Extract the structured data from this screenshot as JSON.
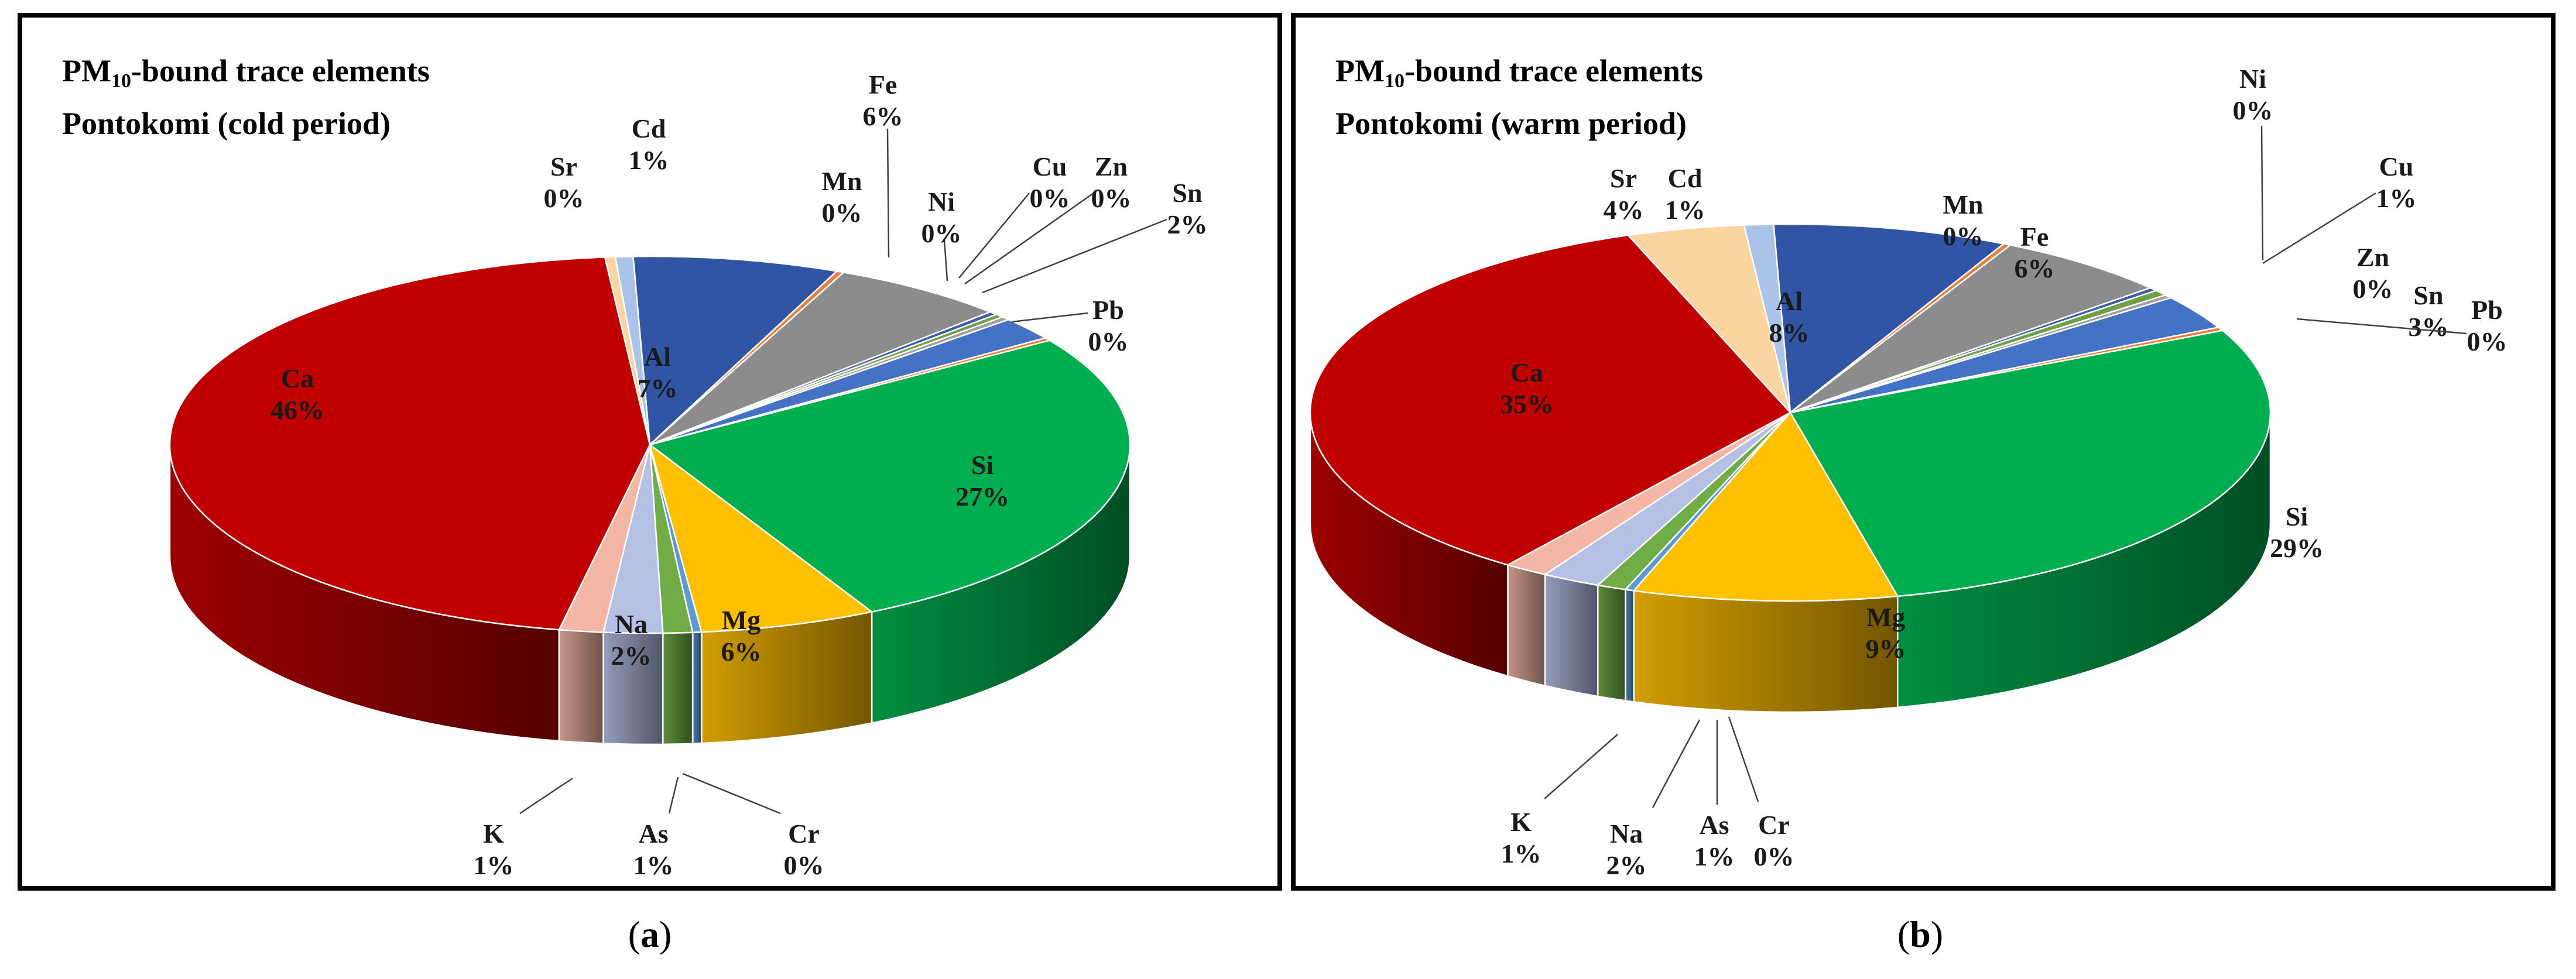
{
  "figure": {
    "panels": [
      {
        "id": "a",
        "caption_open": "(",
        "caption_letter": "a",
        "caption_close": ")",
        "title_prefix": "PM",
        "title_sub": "10",
        "title_suffix": "-bound trace elements",
        "title_line2": "Pontokomi (cold period)"
      },
      {
        "id": "b",
        "caption_open": "(",
        "caption_letter": "b",
        "caption_close": ")",
        "title_prefix": "PM",
        "title_sub": "10",
        "title_suffix": "-bound trace elements",
        "title_line2": "Pontokomi (warm period)"
      }
    ]
  },
  "chart_data": [
    {
      "type": "pie",
      "title": "PM10-bound trace elements Pontokomi (cold period)",
      "slices": [
        {
          "name": "Al",
          "label": "7%",
          "value": 7,
          "color": "#2f55a4"
        },
        {
          "name": "Pb",
          "label": "0%",
          "value": 0.25,
          "color": "#e87f3c"
        },
        {
          "name": "Fe",
          "label": "6%",
          "value": 6,
          "color": "#8c8c8c"
        },
        {
          "name": "Ni",
          "label": "0%",
          "value": 0.3,
          "color": "#3d5ea8"
        },
        {
          "name": "Cu",
          "label": "0%",
          "value": 0.3,
          "color": "#6fa043"
        },
        {
          "name": "Zn",
          "label": "0%",
          "value": 0.3,
          "color": "#a0a0a0"
        },
        {
          "name": "Sn",
          "label": "2%",
          "value": 2,
          "color": "#4472c4"
        },
        {
          "name": "Mn",
          "label": "0%",
          "value": 0.25,
          "color": "#ed7d31"
        },
        {
          "name": "Si",
          "label": "27%",
          "value": 27,
          "color": "#00ad4f"
        },
        {
          "name": "Mg",
          "label": "6%",
          "value": 6,
          "color": "#ffc000"
        },
        {
          "name": "Cr",
          "label": "0%",
          "value": 0.3,
          "color": "#5b9bd5"
        },
        {
          "name": "As",
          "label": "1%",
          "value": 1,
          "color": "#70ad47"
        },
        {
          "name": "Na",
          "label": "2%",
          "value": 2,
          "color": "#b4c0e4"
        },
        {
          "name": "K",
          "label": "1%",
          "value": 1.5,
          "color": "#f4b6a5"
        },
        {
          "name": "Ca",
          "label": "46%",
          "value": 46,
          "color": "#c00000"
        },
        {
          "name": "Sr",
          "label": "0%",
          "value": 0.35,
          "color": "#fbd5a0"
        },
        {
          "name": "Cd",
          "label": "1%",
          "value": 0.6,
          "color": "#a9c4e8"
        }
      ]
    },
    {
      "type": "pie",
      "title": "PM10-bound trace elements Pontokomi (warm period)",
      "slices": [
        {
          "name": "Al",
          "label": "8%",
          "value": 8,
          "color": "#2f55a4"
        },
        {
          "name": "Mn",
          "label": "0%",
          "value": 0.25,
          "color": "#e87f3c"
        },
        {
          "name": "Fe",
          "label": "6%",
          "value": 6,
          "color": "#8c8c8c"
        },
        {
          "name": "Ni",
          "label": "0%",
          "value": 0.3,
          "color": "#3d5ea8"
        },
        {
          "name": "Cu",
          "label": "1%",
          "value": 0.5,
          "color": "#6fa043"
        },
        {
          "name": "Zn",
          "label": "0%",
          "value": 0.3,
          "color": "#a0a0a0"
        },
        {
          "name": "Sn",
          "label": "3%",
          "value": 3,
          "color": "#4472c4"
        },
        {
          "name": "Pb",
          "label": "0%",
          "value": 0.3,
          "color": "#ed7d31"
        },
        {
          "name": "Si",
          "label": "29%",
          "value": 29,
          "color": "#00ad4f"
        },
        {
          "name": "Mg",
          "label": "9%",
          "value": 9,
          "color": "#ffc000"
        },
        {
          "name": "Cr",
          "label": "0%",
          "value": 0.3,
          "color": "#5b9bd5"
        },
        {
          "name": "As",
          "label": "1%",
          "value": 1,
          "color": "#70ad47"
        },
        {
          "name": "Na",
          "label": "2%",
          "value": 2,
          "color": "#b4c0e4"
        },
        {
          "name": "K",
          "label": "1%",
          "value": 1.5,
          "color": "#f4b6a5"
        },
        {
          "name": "Ca",
          "label": "35%",
          "value": 35,
          "color": "#c00000"
        },
        {
          "name": "Sr",
          "label": "4%",
          "value": 4,
          "color": "#fbd5a0"
        },
        {
          "name": "Cd",
          "label": "1%",
          "value": 1,
          "color": "#a9c4e8"
        }
      ]
    }
  ]
}
